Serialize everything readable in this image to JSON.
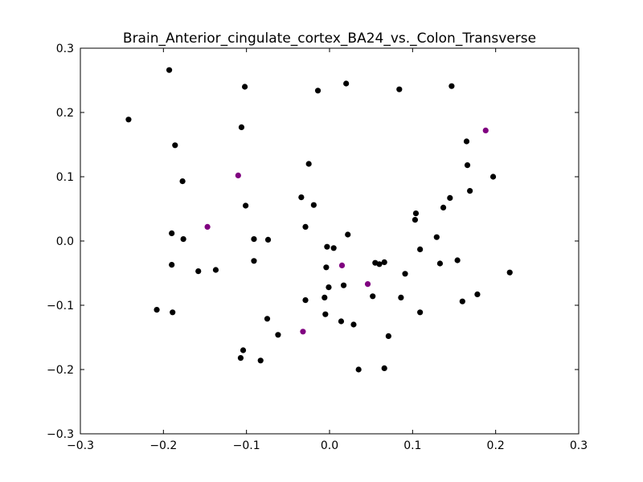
{
  "chart_data": {
    "type": "scatter",
    "title": "Brain_Anterior_cingulate_cortex_BA24_vs._Colon_Transverse",
    "xlabel": "",
    "ylabel": "",
    "xlim": [
      -0.3,
      0.3
    ],
    "ylim": [
      -0.3,
      0.3
    ],
    "x_ticks": [
      "−0.3",
      "−0.2",
      "−0.1",
      "0.0",
      "0.1",
      "0.2",
      "0.3"
    ],
    "y_ticks": [
      "−0.3",
      "−0.2",
      "−0.1",
      "0.0",
      "0.1",
      "0.2",
      "0.3"
    ],
    "grid": false,
    "legend": "none",
    "colors": {
      "default": "#000000",
      "highlight": "#800080"
    },
    "series": [
      {
        "color": "#000000",
        "points": [
          [
            -0.242,
            0.189
          ],
          [
            -0.193,
            0.266
          ],
          [
            -0.186,
            0.149
          ],
          [
            -0.177,
            0.093
          ],
          [
            -0.19,
            0.012
          ],
          [
            -0.176,
            0.003
          ],
          [
            -0.19,
            -0.037
          ],
          [
            -0.158,
            -0.047
          ],
          [
            -0.137,
            -0.045
          ],
          [
            -0.208,
            -0.107
          ],
          [
            -0.189,
            -0.111
          ],
          [
            -0.102,
            0.24
          ],
          [
            -0.106,
            0.177
          ],
          [
            -0.101,
            0.055
          ],
          [
            -0.091,
            0.003
          ],
          [
            -0.074,
            0.002
          ],
          [
            -0.091,
            -0.031
          ],
          [
            -0.075,
            -0.121
          ],
          [
            -0.062,
            -0.146
          ],
          [
            -0.104,
            -0.17
          ],
          [
            -0.107,
            -0.182
          ],
          [
            -0.083,
            -0.186
          ],
          [
            -0.014,
            0.234
          ],
          [
            0.02,
            0.245
          ],
          [
            -0.025,
            0.12
          ],
          [
            -0.034,
            0.068
          ],
          [
            -0.019,
            0.056
          ],
          [
            -0.029,
            0.022
          ],
          [
            0.022,
            0.01
          ],
          [
            -0.003,
            -0.009
          ],
          [
            0.005,
            -0.011
          ],
          [
            -0.004,
            -0.041
          ],
          [
            -0.001,
            -0.072
          ],
          [
            0.017,
            -0.069
          ],
          [
            -0.006,
            -0.088
          ],
          [
            -0.029,
            -0.092
          ],
          [
            -0.005,
            -0.114
          ],
          [
            0.014,
            -0.125
          ],
          [
            0.029,
            -0.13
          ],
          [
            0.035,
            -0.2
          ],
          [
            0.084,
            0.236
          ],
          [
            0.147,
            0.241
          ],
          [
            0.165,
            0.155
          ],
          [
            0.166,
            0.118
          ],
          [
            0.197,
            0.1
          ],
          [
            0.169,
            0.078
          ],
          [
            0.145,
            0.067
          ],
          [
            0.137,
            0.052
          ],
          [
            0.104,
            0.043
          ],
          [
            0.103,
            0.033
          ],
          [
            0.129,
            0.006
          ],
          [
            0.109,
            -0.013
          ],
          [
            0.055,
            -0.034
          ],
          [
            0.06,
            -0.036
          ],
          [
            0.066,
            -0.033
          ],
          [
            0.091,
            -0.051
          ],
          [
            0.133,
            -0.035
          ],
          [
            0.154,
            -0.03
          ],
          [
            0.217,
            -0.049
          ],
          [
            0.052,
            -0.086
          ],
          [
            0.086,
            -0.088
          ],
          [
            0.16,
            -0.094
          ],
          [
            0.178,
            -0.083
          ],
          [
            0.109,
            -0.111
          ],
          [
            0.071,
            -0.148
          ],
          [
            0.066,
            -0.198
          ]
        ]
      },
      {
        "color": "#800080",
        "points": [
          [
            0.188,
            0.172
          ],
          [
            -0.11,
            0.102
          ],
          [
            -0.147,
            0.022
          ],
          [
            0.015,
            -0.038
          ],
          [
            0.046,
            -0.067
          ],
          [
            -0.032,
            -0.141
          ]
        ]
      }
    ]
  }
}
